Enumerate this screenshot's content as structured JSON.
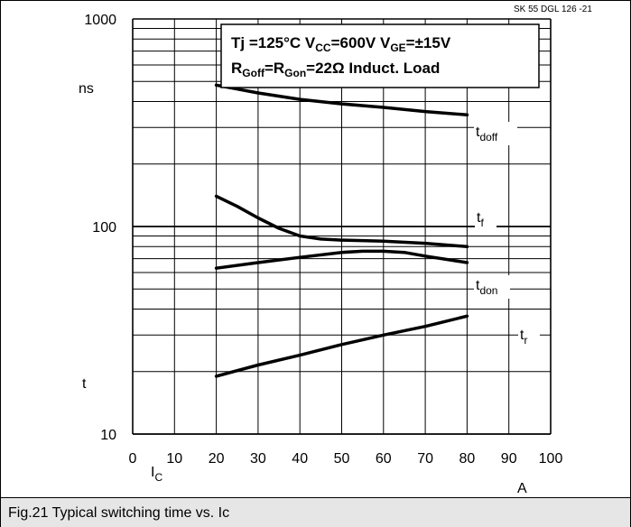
{
  "chart_data": {
    "type": "line",
    "reference": "SK 55 DGL 126  -21",
    "conditions": {
      "line1": "Tj =125°C  V",
      "line1_vcc_sub": "CC",
      "line1_vcc_val": "=600V  V",
      "line1_vge_sub": "GE",
      "line1_vge_val": "=±15V",
      "line2_r": "R",
      "line2_goff_sub": "Goff",
      "line2_eq": "=R",
      "line2_gon_sub": "Gon",
      "line2_val": "=22Ω   Induct. Load"
    },
    "xlim": [
      0,
      100
    ],
    "ylim": [
      10,
      1000
    ],
    "yscale": "log",
    "x_ticks": [
      "0",
      "10",
      "20",
      "30",
      "40",
      "50",
      "60",
      "70",
      "80",
      "90",
      "100"
    ],
    "y_ticks": [
      {
        "value": 10,
        "label": "10"
      },
      {
        "value": 100,
        "label": "100"
      },
      {
        "value": 1000,
        "label": "1000"
      }
    ],
    "y_unit": "ns",
    "y_symbol": "t",
    "x_symbol": "I",
    "x_symbol_sub": "C",
    "x_unit": "A",
    "grid": true,
    "series": [
      {
        "name": "t",
        "name_sub": "doff",
        "x": [
          20,
          30,
          40,
          50,
          60,
          70,
          80
        ],
        "y": [
          480,
          440,
          410,
          390,
          375,
          358,
          345
        ]
      },
      {
        "name": "t",
        "name_sub": "f",
        "x": [
          20,
          25,
          30,
          35,
          40,
          45,
          50,
          60,
          70,
          80
        ],
        "y": [
          140,
          125,
          110,
          98,
          90,
          87,
          86,
          85,
          83,
          80
        ]
      },
      {
        "name": "t",
        "name_sub": "don",
        "x": [
          20,
          30,
          40,
          50,
          55,
          60,
          65,
          70,
          80
        ],
        "y": [
          63,
          67,
          71,
          75,
          76,
          76,
          75,
          72,
          67
        ]
      },
      {
        "name": "t",
        "name_sub": "r",
        "x": [
          20,
          30,
          40,
          50,
          60,
          70,
          80
        ],
        "y": [
          19,
          21.5,
          24,
          27,
          30,
          33,
          37
        ]
      }
    ]
  },
  "caption": "Fig.21 Typical switching time vs. Ic"
}
